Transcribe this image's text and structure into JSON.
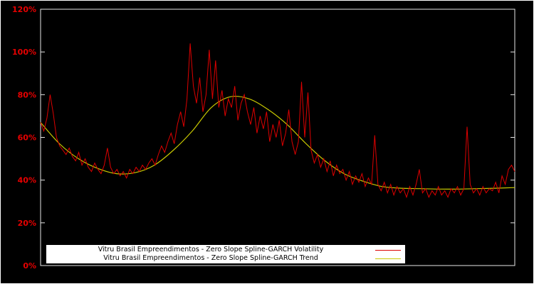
{
  "chart": {
    "background": "#000000",
    "frame_color": "#e6e6e6",
    "tick_label_color": "#e60000",
    "ylim": [
      0,
      120
    ],
    "y_ticks": [
      {
        "label": "0%",
        "value": 0
      },
      {
        "label": "20%",
        "value": 20
      },
      {
        "label": "40%",
        "value": 40
      },
      {
        "label": "60%",
        "value": 60
      },
      {
        "label": "80%",
        "value": 80
      },
      {
        "label": "100%",
        "value": 100
      },
      {
        "label": "120%",
        "value": 120
      }
    ],
    "x_axis": {
      "labels_visible": false
    }
  },
  "legend": {
    "entries": [
      {
        "label": "Vitru Brasil Empreendimentos - Zero Slope Spline-GARCH Volatility",
        "color": "#dd0000"
      },
      {
        "label": "Vitru Brasil Empreendimentos - Zero Slope Spline-GARCH Trend",
        "color": "#c8c800"
      }
    ]
  },
  "chart_data": {
    "type": "line",
    "title": "",
    "xlabel": "",
    "ylabel": "",
    "y_unit": "%",
    "ylim": [
      0,
      120
    ],
    "grid": false,
    "legend_position": "bottom-center-inside",
    "series": [
      {
        "name": "Vitru Brasil Empreendimentos - Zero Slope Spline-GARCH Volatility",
        "color": "#dd0000",
        "x_range": [
          0,
          1
        ],
        "values": [
          67,
          63,
          69,
          80,
          71,
          60,
          56,
          54,
          52,
          55,
          51,
          49,
          53,
          47,
          50,
          46,
          44,
          48,
          45,
          43,
          47,
          55,
          46,
          43,
          45,
          42,
          44,
          41,
          45,
          43,
          46,
          44,
          47,
          45,
          48,
          50,
          47,
          52,
          56,
          53,
          58,
          62,
          57,
          66,
          72,
          65,
          78,
          104,
          84,
          76,
          88,
          72,
          80,
          101,
          78,
          96,
          74,
          82,
          70,
          78,
          74,
          84,
          68,
          76,
          80,
          72,
          66,
          74,
          62,
          70,
          64,
          72,
          58,
          66,
          60,
          68,
          56,
          62,
          73,
          58,
          52,
          58,
          86,
          60,
          81,
          54,
          48,
          52,
          46,
          50,
          44,
          49,
          42,
          47,
          43,
          45,
          40,
          44,
          38,
          42,
          39,
          43,
          37,
          41,
          38,
          61,
          38,
          35,
          39,
          34,
          38,
          33,
          37,
          34,
          36,
          32,
          37,
          33,
          38,
          45,
          34,
          36,
          32,
          35,
          33,
          37,
          33,
          35,
          32,
          36,
          34,
          37,
          33,
          36,
          65,
          38,
          34,
          36,
          33,
          37,
          34,
          36,
          35,
          39,
          34,
          42,
          38,
          45,
          47,
          44
        ]
      },
      {
        "name": "Vitru Brasil Empreendimentos - Zero Slope Spline-GARCH Trend",
        "color": "#c8c800",
        "points": [
          [
            0.0,
            67.0
          ],
          [
            0.04,
            57.0
          ],
          [
            0.08,
            50.0
          ],
          [
            0.12,
            45.5
          ],
          [
            0.16,
            43.0
          ],
          [
            0.2,
            43.5
          ],
          [
            0.24,
            47.0
          ],
          [
            0.28,
            54.0
          ],
          [
            0.32,
            63.0
          ],
          [
            0.36,
            74.0
          ],
          [
            0.4,
            79.0
          ],
          [
            0.44,
            78.0
          ],
          [
            0.48,
            73.0
          ],
          [
            0.52,
            66.0
          ],
          [
            0.56,
            57.0
          ],
          [
            0.6,
            49.0
          ],
          [
            0.64,
            43.0
          ],
          [
            0.68,
            39.5
          ],
          [
            0.72,
            37.0
          ],
          [
            0.76,
            36.2
          ],
          [
            0.8,
            36.0
          ],
          [
            0.84,
            35.8
          ],
          [
            0.88,
            35.8
          ],
          [
            0.92,
            36.0
          ],
          [
            0.96,
            36.2
          ],
          [
            1.0,
            36.5
          ]
        ]
      }
    ]
  }
}
